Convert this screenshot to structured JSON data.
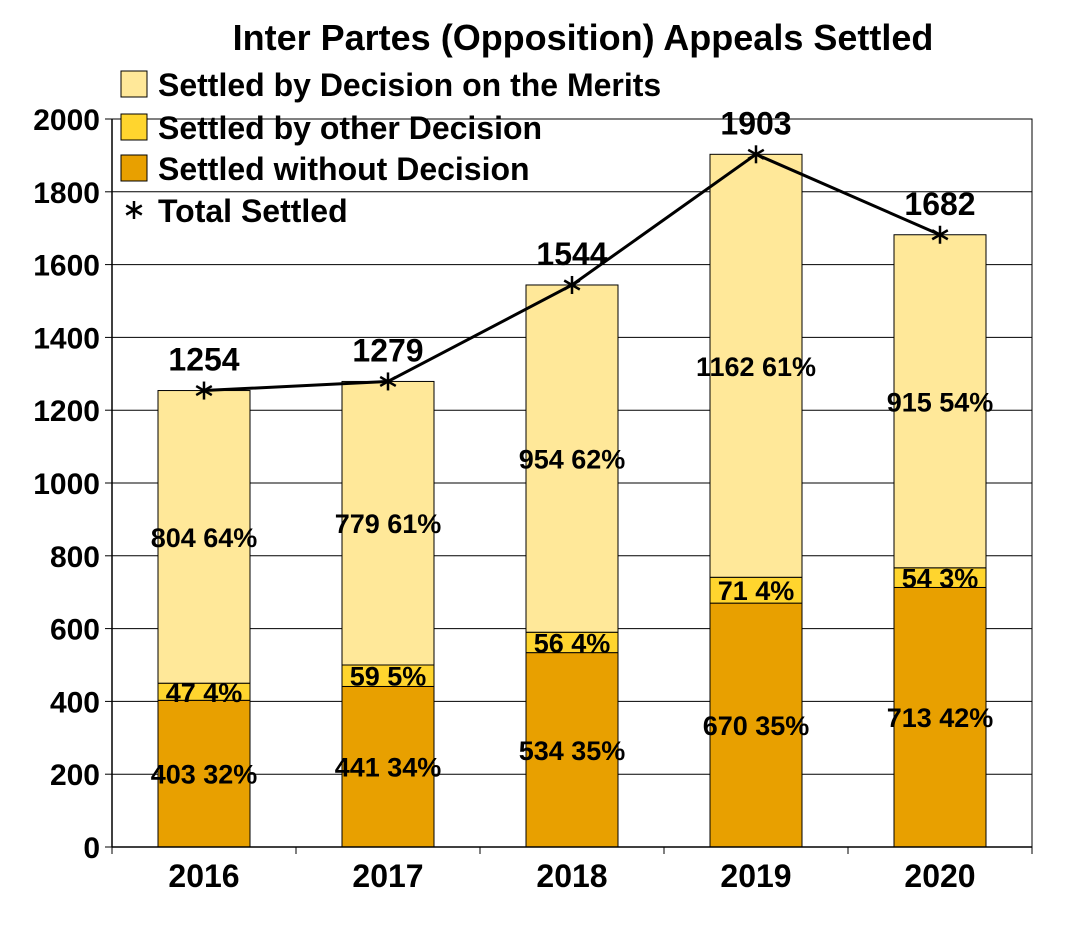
{
  "chart_data": {
    "type": "bar",
    "stacked": true,
    "title": "Inter Partes (Opposition) Appeals Settled",
    "xlabel": "",
    "ylabel": "",
    "categories": [
      "2016",
      "2017",
      "2018",
      "2019",
      "2020"
    ],
    "ylim": [
      0,
      2000
    ],
    "yticks": [
      "0",
      "200",
      "400",
      "600",
      "800",
      "1000",
      "1200",
      "1400",
      "1600",
      "1800",
      "2000"
    ],
    "grid": "horizontal",
    "legend_position": "top-left",
    "series": [
      {
        "name": "Settled without Decision",
        "color": "#E8A000",
        "values": [
          403,
          441,
          534,
          670,
          713
        ],
        "labels": [
          "403 32%",
          "441 34%",
          "534 35%",
          "670 35%",
          "713 42%"
        ]
      },
      {
        "name": "Settled by other Decision",
        "color": "#FFD52E",
        "values": [
          47,
          59,
          56,
          71,
          54
        ],
        "labels": [
          "47 4%",
          "59 5%",
          "56 4%",
          "71 4%",
          "54 3%"
        ]
      },
      {
        "name": "Settled by Decision on the Merits",
        "color": "#FFE899",
        "values": [
          804,
          779,
          954,
          1162,
          915
        ],
        "labels": [
          "804 64%",
          "779 61%",
          "954 62%",
          "1162 61%",
          "915 54%"
        ]
      }
    ],
    "line": {
      "name": "Total Settled",
      "color": "#000000",
      "marker": "asterisk",
      "values": [
        1254,
        1279,
        1544,
        1903,
        1682
      ],
      "labels": [
        "1254",
        "1279",
        "1544",
        "1903",
        "1682"
      ]
    },
    "legend_order": [
      "Settled by Decision on the Merits",
      "Settled by other Decision",
      "Settled without Decision",
      "Total Settled"
    ]
  }
}
